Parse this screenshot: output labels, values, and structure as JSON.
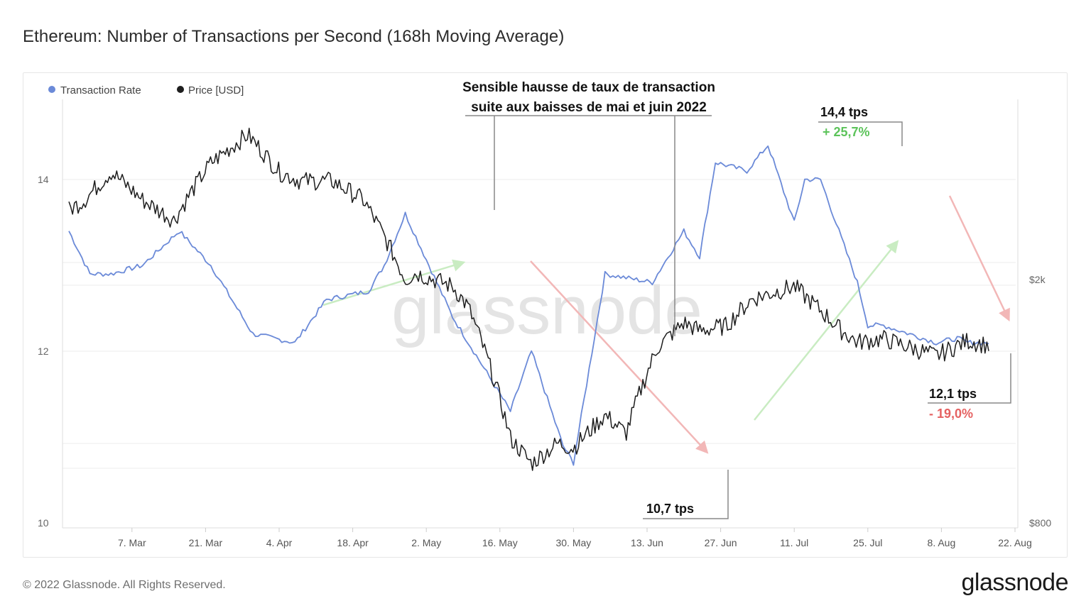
{
  "page": {
    "title": "Ethereum: Number of Transactions per Second (168h Moving Average)",
    "copyright": "© 2022 Glassnode. All Rights Reserved.",
    "logo": "glassnode",
    "watermark": "glassnode"
  },
  "colors": {
    "tx_rate": "#6b8ad8",
    "price": "#1e1e1e",
    "green_arrow": "#c9ecc2",
    "red_arrow": "#f2b7b7",
    "green_text": "#5cc35a",
    "red_text": "#e56161",
    "grid": "#eeeeee",
    "watermark": "#e4e4e4"
  },
  "chart_data": {
    "type": "line",
    "title": "Ethereum: Number of Transactions per Second (168h Moving Average)",
    "x_ticks": [
      "7. Mar",
      "21. Mar",
      "4. Apr",
      "18. Apr",
      "2. May",
      "16. May",
      "30. May",
      "13. Jun",
      "27. Jun",
      "11. Jul",
      "25. Jul",
      "8. Aug",
      "22. Aug"
    ],
    "y_left": {
      "label": "Transaction Rate",
      "range": [
        10,
        15
      ],
      "ticks": [
        "10",
        "12",
        "14"
      ]
    },
    "y_right": {
      "label": "Price [USD]",
      "scale": "log",
      "ticks": [
        "$800",
        "$2k"
      ]
    },
    "legend": [
      "Transaction Rate",
      "Price [USD]"
    ],
    "legend_position": "top-left",
    "series": [
      {
        "name": "Transaction Rate",
        "axis": "left",
        "unit": "tps",
        "days": [
          0,
          4,
          8,
          14,
          21,
          27,
          35,
          43,
          49,
          57,
          60,
          64,
          73,
          78,
          84,
          88,
          94,
          96,
          102,
          111,
          117,
          120,
          123,
          129,
          133,
          138,
          140,
          143,
          150,
          152,
          155,
          165,
          169,
          171,
          175
        ],
        "values": [
          13.4,
          12.9,
          12.9,
          13.0,
          13.4,
          13.0,
          12.2,
          12.1,
          12.6,
          12.7,
          13.0,
          13.6,
          12.4,
          11.9,
          11.3,
          12.0,
          10.9,
          10.7,
          12.9,
          12.8,
          13.4,
          13.1,
          14.2,
          14.1,
          14.4,
          13.5,
          14.0,
          14.0,
          12.8,
          12.3,
          12.3,
          12.1,
          12.15,
          12.1,
          12.1
        ]
      },
      {
        "name": "Price [USD]",
        "axis": "right",
        "unit": "USD",
        "days": [
          0,
          3,
          8,
          14,
          20,
          27,
          34,
          40,
          44,
          50,
          56,
          64,
          66,
          73,
          76,
          84,
          88,
          93,
          96,
          102,
          106,
          112,
          117,
          120,
          125,
          130,
          138,
          140,
          147,
          150,
          155,
          165,
          171,
          175
        ],
        "values": [
          2600,
          2700,
          3000,
          2700,
          2500,
          3100,
          3450,
          3000,
          2900,
          2900,
          2700,
          2000,
          2050,
          1950,
          1800,
          1100,
          1000,
          1080,
          1060,
          1200,
          1120,
          1550,
          1700,
          1650,
          1680,
          1860,
          1950,
          1880,
          1650,
          1580,
          1600,
          1500,
          1590,
          1560
        ]
      }
    ],
    "annotations": {
      "top": [
        "Sensible hausse de taux de transaction",
        "suite aux baisses de mai et juin 2022"
      ],
      "peak_value": "14,4 tps",
      "peak_change": "+ 25,7%",
      "low_value": "10,7 tps",
      "end_value": "12,1 tps",
      "end_change": "- 19,0%"
    }
  }
}
